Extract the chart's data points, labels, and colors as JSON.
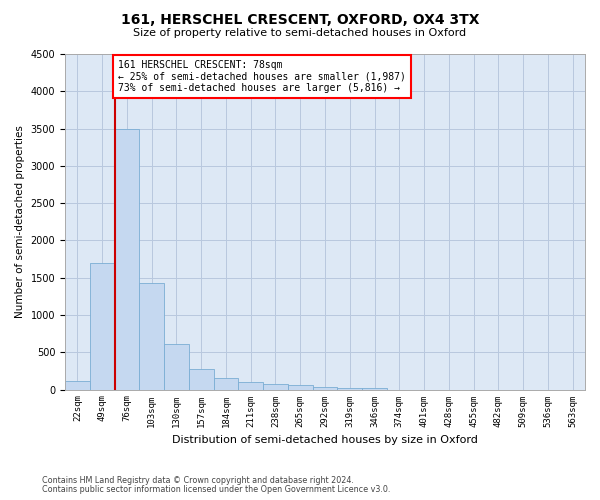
{
  "title": "161, HERSCHEL CRESCENT, OXFORD, OX4 3TX",
  "subtitle": "Size of property relative to semi-detached houses in Oxford",
  "xlabel": "Distribution of semi-detached houses by size in Oxford",
  "ylabel": "Number of semi-detached properties",
  "bar_labels": [
    "22sqm",
    "49sqm",
    "76sqm",
    "103sqm",
    "130sqm",
    "157sqm",
    "184sqm",
    "211sqm",
    "238sqm",
    "265sqm",
    "292sqm",
    "319sqm",
    "346sqm",
    "374sqm",
    "401sqm",
    "428sqm",
    "455sqm",
    "482sqm",
    "509sqm",
    "536sqm",
    "563sqm"
  ],
  "bar_values": [
    110,
    1700,
    3500,
    1430,
    610,
    280,
    150,
    95,
    75,
    55,
    40,
    25,
    20,
    0,
    0,
    0,
    0,
    0,
    0,
    0,
    0
  ],
  "bar_color": "#c5d8f0",
  "bar_edge_color": "#7aadd4",
  "vline_color": "#cc0000",
  "annotation_title": "161 HERSCHEL CRESCENT: 78sqm",
  "annotation_line1": "← 25% of semi-detached houses are smaller (1,987)",
  "annotation_line2": "73% of semi-detached houses are larger (5,816) →",
  "ylim": [
    0,
    4500
  ],
  "yticks": [
    0,
    500,
    1000,
    1500,
    2000,
    2500,
    3000,
    3500,
    4000,
    4500
  ],
  "ax_bg_color": "#dde8f5",
  "background_color": "#ffffff",
  "grid_color": "#b8c8de",
  "footer1": "Contains HM Land Registry data © Crown copyright and database right 2024.",
  "footer2": "Contains public sector information licensed under the Open Government Licence v3.0."
}
